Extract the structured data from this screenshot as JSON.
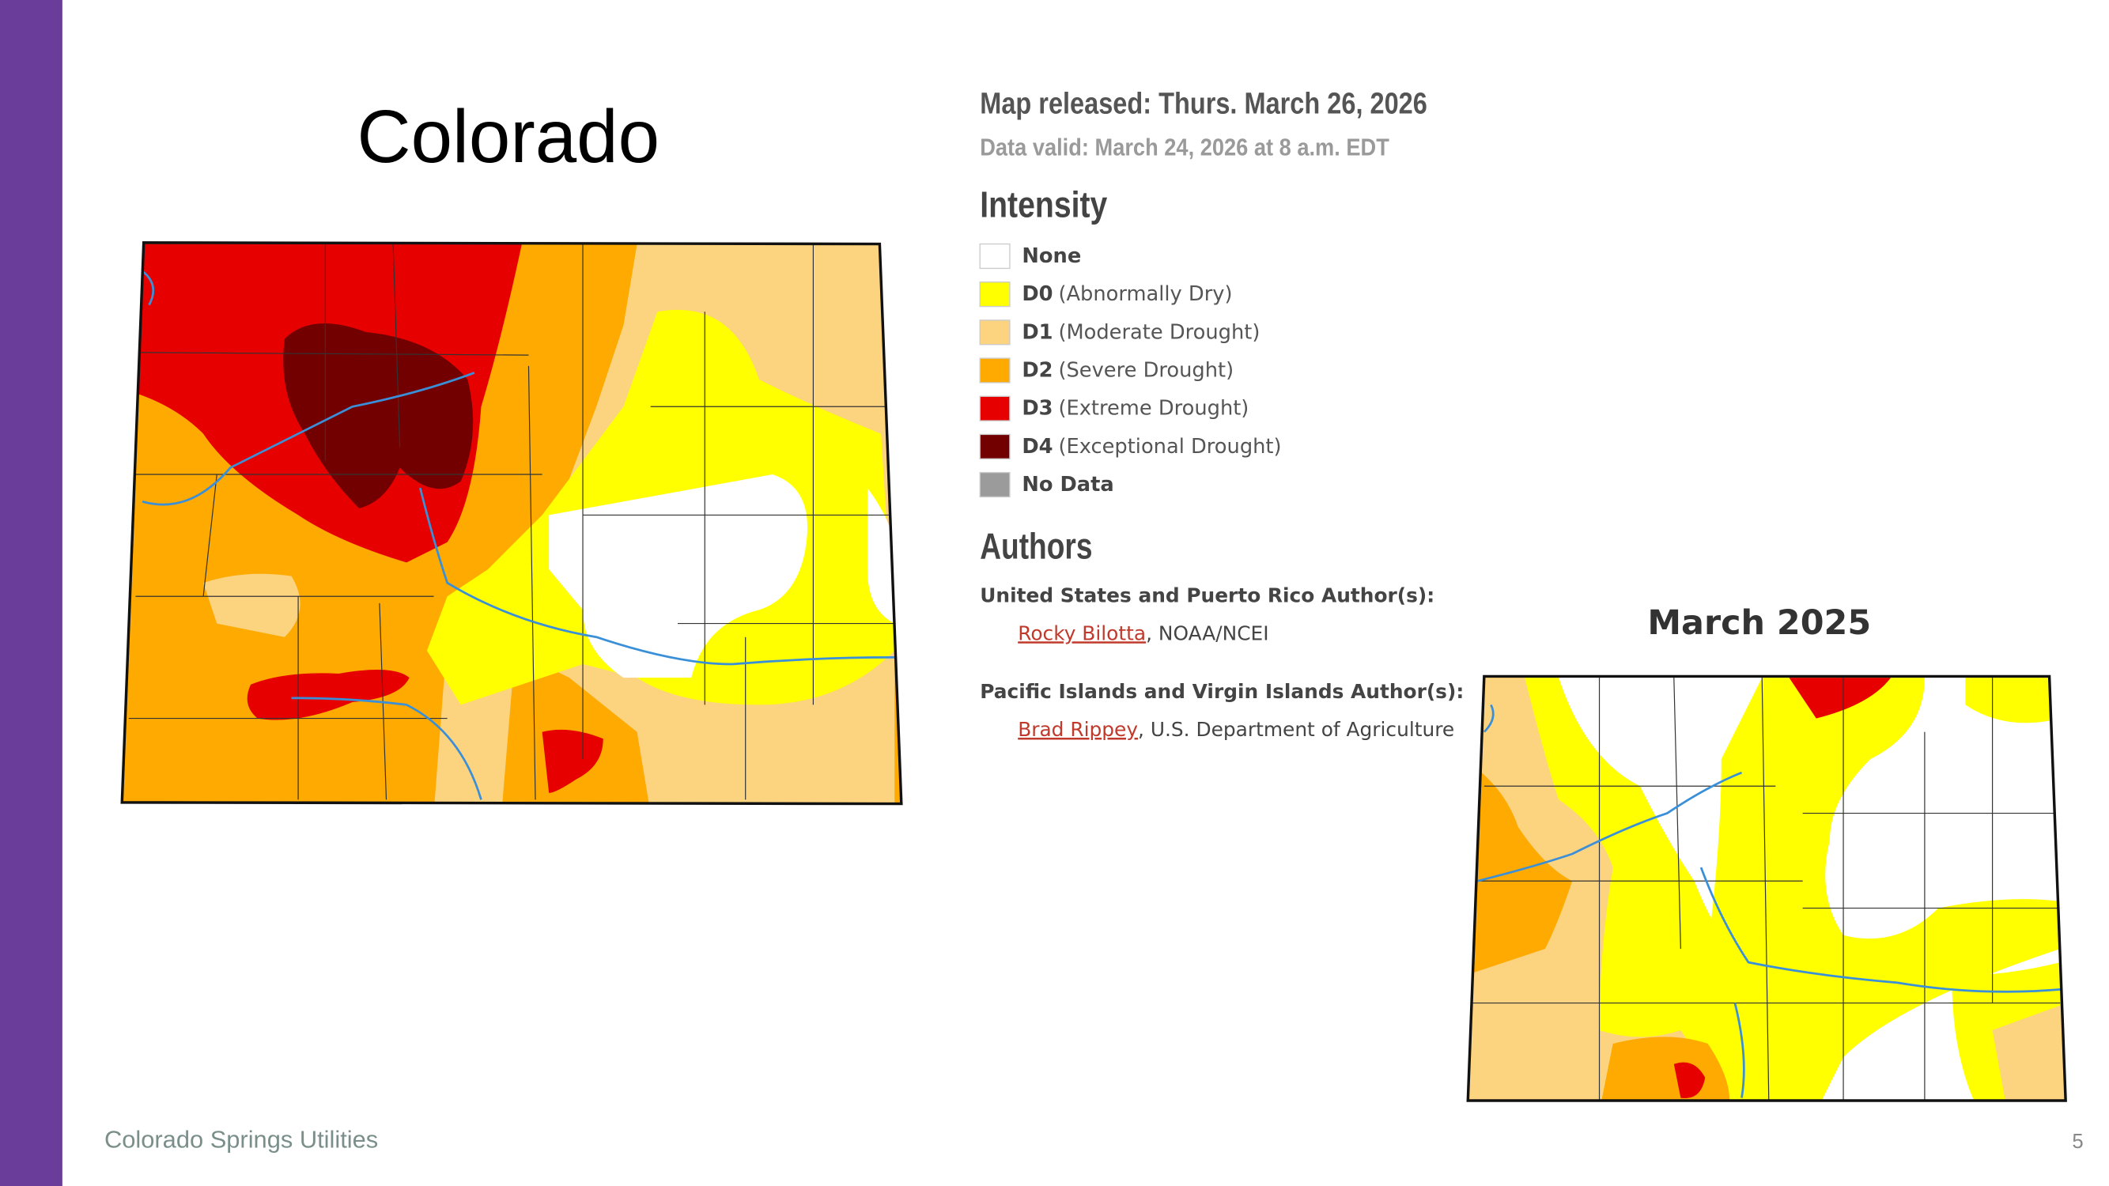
{
  "title": "Colorado",
  "map_released": "Map released: Thurs. March 26, 2026",
  "data_valid": "Data valid: March 24, 2026 at 8 a.m. EDT",
  "legend": {
    "heading": "Intensity",
    "items": [
      {
        "code": "None",
        "color": "#ffffff"
      },
      {
        "code": "D0",
        "label": "(Abnormally Dry)",
        "color": "#ffff00"
      },
      {
        "code": "D1",
        "label": "(Moderate Drought)",
        "color": "#fcd37f"
      },
      {
        "code": "D2",
        "label": "(Severe Drought)",
        "color": "#ffaa00"
      },
      {
        "code": "D3",
        "label": "(Extreme Drought)",
        "color": "#e60000"
      },
      {
        "code": "D4",
        "label": "(Exceptional Drought)",
        "color": "#730000"
      },
      {
        "code": "No Data",
        "color": "#9b9b9b"
      }
    ]
  },
  "authors": {
    "heading": "Authors",
    "groups": [
      {
        "label": "United States and Puerto Rico Author(s):",
        "name": "Rocky Bilotta",
        "affiliation": ", NOAA/NCEI"
      },
      {
        "label": "Pacific Islands and Virgin Islands Author(s):",
        "name": "Brad Rippey",
        "affiliation": ", U.S. Department of Agriculture"
      }
    ]
  },
  "comparison_title": "March 2025",
  "footer": {
    "organization": "Colorado Springs Utilities",
    "page_number": 5
  }
}
